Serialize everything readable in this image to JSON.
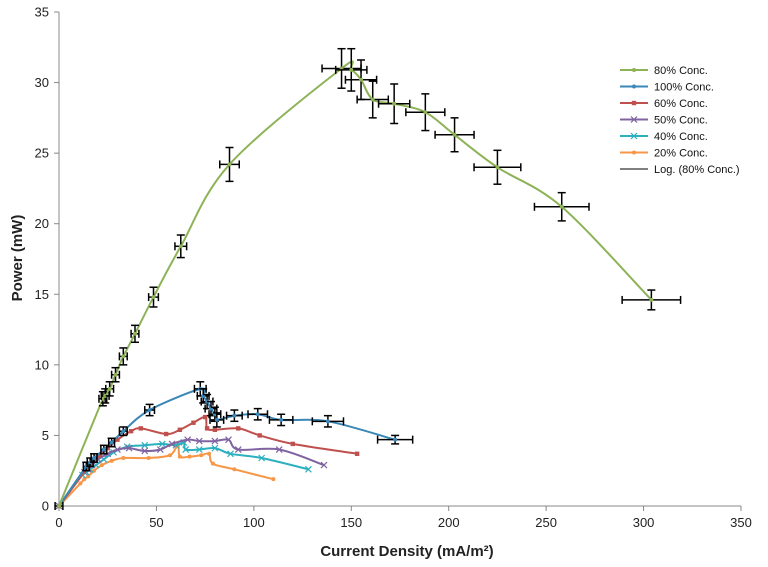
{
  "chart_data": {
    "type": "scatter",
    "title": "",
    "xlabel": "Current Density (mA/m²)",
    "ylabel": "Power (mW)",
    "xlim": [
      0,
      350
    ],
    "ylim": [
      0,
      35
    ],
    "xticks": [
      0,
      50,
      100,
      150,
      200,
      250,
      300,
      350
    ],
    "yticks": [
      0,
      5,
      10,
      15,
      20,
      25,
      30,
      35
    ],
    "grid": false,
    "legend_position": "right",
    "series": [
      {
        "name": "80% Conc.",
        "color": "#8DB356",
        "marker": "dot",
        "points": [
          [
            0,
            0
          ],
          [
            22.5,
            7.6
          ],
          [
            23.7,
            7.8
          ],
          [
            26,
            8.3
          ],
          [
            29,
            9.3
          ],
          [
            33,
            10.6
          ],
          [
            39,
            12.2
          ],
          [
            48.5,
            14.8
          ],
          [
            62.5,
            18.4
          ],
          [
            87.5,
            24.2
          ],
          [
            145,
            31.0
          ],
          [
            150,
            30.9
          ],
          [
            155,
            30.2
          ],
          [
            161,
            28.8
          ],
          [
            172,
            28.5
          ],
          [
            188,
            27.9
          ],
          [
            203,
            26.3
          ],
          [
            225,
            24.0
          ],
          [
            258,
            21.2
          ],
          [
            304,
            14.6
          ]
        ],
        "error_x": [
          2,
          2,
          2,
          2,
          2,
          2,
          2,
          2.5,
          3,
          5,
          10,
          8,
          8,
          8,
          8,
          10,
          10,
          12,
          14,
          15
        ],
        "error_y": [
          0,
          0.5,
          0.5,
          0.5,
          0.5,
          0.6,
          0.6,
          0.7,
          0.8,
          1.2,
          1.4,
          1.5,
          1.4,
          1.3,
          1.4,
          1.3,
          1.2,
          1.2,
          1.0,
          0.7
        ]
      },
      {
        "name": "100% Conc.",
        "color": "#3A87B8",
        "marker": "dot",
        "points": [
          [
            0,
            0
          ],
          [
            14,
            2.8
          ],
          [
            16,
            3.1
          ],
          [
            18,
            3.4
          ],
          [
            23,
            4.0
          ],
          [
            27,
            4.5
          ],
          [
            33,
            5.3
          ],
          [
            46.5,
            6.8
          ],
          [
            72.5,
            8.3
          ],
          [
            74,
            7.8
          ],
          [
            76,
            7.4
          ],
          [
            78,
            6.9
          ],
          [
            80,
            6.5
          ],
          [
            81,
            6.1
          ],
          [
            90,
            6.4
          ],
          [
            102,
            6.5
          ],
          [
            114,
            6.1
          ],
          [
            138,
            6.0
          ],
          [
            172.5,
            4.7
          ]
        ],
        "error_x": [
          0,
          1.5,
          1.5,
          1.5,
          1.5,
          1.5,
          2,
          2.5,
          3,
          3,
          3,
          3,
          3,
          3.5,
          4,
          5,
          6,
          8,
          9
        ],
        "error_y": [
          0,
          0.3,
          0.3,
          0.3,
          0.3,
          0.3,
          0.3,
          0.4,
          0.5,
          0.5,
          0.5,
          0.5,
          0.5,
          0.5,
          0.4,
          0.4,
          0.4,
          0.4,
          0.3
        ]
      },
      {
        "name": "60% Conc.",
        "color": "#C0504D",
        "marker": "square",
        "points": [
          [
            0,
            0
          ],
          [
            14,
            2.6
          ],
          [
            16,
            2.9
          ],
          [
            18,
            3.2
          ],
          [
            21,
            3.6
          ],
          [
            25,
            4.1
          ],
          [
            30,
            4.7
          ],
          [
            37,
            5.3
          ],
          [
            42,
            5.5
          ],
          [
            55,
            5.1
          ],
          [
            62,
            5.4
          ],
          [
            69,
            5.9
          ],
          [
            75,
            6.3
          ],
          [
            76,
            5.5
          ],
          [
            80,
            5.4
          ],
          [
            92,
            5.5
          ],
          [
            103,
            5.0
          ],
          [
            120,
            4.4
          ],
          [
            153,
            3.7
          ]
        ]
      },
      {
        "name": "50% Conc.",
        "color": "#8064A2",
        "marker": "x",
        "points": [
          [
            0,
            0
          ],
          [
            13,
            2.4
          ],
          [
            15,
            2.6
          ],
          [
            17,
            2.9
          ],
          [
            20,
            3.3
          ],
          [
            25,
            3.7
          ],
          [
            30,
            4.0
          ],
          [
            36,
            4.1
          ],
          [
            44,
            3.9
          ],
          [
            52,
            4.0
          ],
          [
            58,
            4.4
          ],
          [
            66,
            4.7
          ],
          [
            72,
            4.6
          ],
          [
            80,
            4.6
          ],
          [
            87,
            4.7
          ],
          [
            92,
            4.0
          ],
          [
            113,
            4.0
          ],
          [
            136,
            2.9
          ]
        ]
      },
      {
        "name": "40% Conc.",
        "color": "#2AB0BF",
        "marker": "x",
        "points": [
          [
            0,
            0
          ],
          [
            12,
            2.2
          ],
          [
            14,
            2.4
          ],
          [
            16,
            2.6
          ],
          [
            19,
            2.9
          ],
          [
            23,
            3.3
          ],
          [
            28,
            3.8
          ],
          [
            35,
            4.2
          ],
          [
            44,
            4.3
          ],
          [
            53,
            4.4
          ],
          [
            60,
            4.3
          ],
          [
            64,
            4.5
          ],
          [
            65,
            4.0
          ],
          [
            72,
            4.0
          ],
          [
            80,
            4.1
          ],
          [
            88,
            3.7
          ],
          [
            104,
            3.4
          ],
          [
            128,
            2.6
          ]
        ]
      },
      {
        "name": "20% Conc.",
        "color": "#F79646",
        "marker": "dot",
        "points": [
          [
            0,
            0
          ],
          [
            11,
            1.6
          ],
          [
            13,
            1.9
          ],
          [
            15,
            2.1
          ],
          [
            18,
            2.5
          ],
          [
            22,
            2.9
          ],
          [
            27,
            3.2
          ],
          [
            33,
            3.4
          ],
          [
            46,
            3.4
          ],
          [
            57,
            3.6
          ],
          [
            61,
            4.3
          ],
          [
            62,
            3.5
          ],
          [
            67,
            3.5
          ],
          [
            73,
            3.6
          ],
          [
            77,
            3.7
          ],
          [
            79,
            3.0
          ],
          [
            90,
            2.6
          ],
          [
            110,
            1.9
          ]
        ]
      },
      {
        "name": "Log. (80% Conc.)",
        "color": "#7F7F7F",
        "marker": "none",
        "points": []
      }
    ]
  }
}
